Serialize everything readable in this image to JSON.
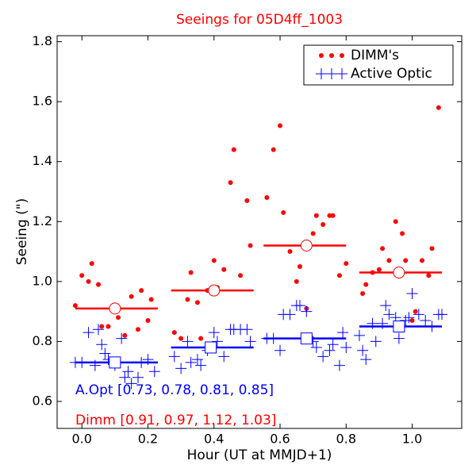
{
  "chart_data": {
    "type": "scatter",
    "title": "Seeings for 05D4ff_1003",
    "title_color": "#ff0000",
    "xlabel": "Hour (UT at MMJD+1)",
    "ylabel": "Seeing (\")",
    "xlim": [
      -0.075,
      1.15
    ],
    "ylim": [
      0.51,
      1.82
    ],
    "xticks": [
      {
        "value": 0,
        "label": "0.0"
      },
      0.2,
      0.4,
      0.6,
      0.8,
      {
        "value": 1,
        "label": "1.0"
      }
    ],
    "yticks": [
      0.6,
      0.8,
      {
        "value": 1,
        "label": "1.0"
      },
      1.2,
      1.4,
      1.6,
      1.8
    ],
    "legend": "upper right",
    "series": [
      {
        "name": "DIMM's",
        "color": "#ff0000",
        "marker": "dot",
        "x": [
          -0.02,
          0.0,
          0.02,
          0.03,
          0.05,
          0.06,
          0.08,
          0.11,
          0.13,
          0.15,
          0.17,
          0.18,
          0.2,
          0.21,
          0.28,
          0.3,
          0.32,
          0.33,
          0.35,
          0.36,
          0.38,
          0.4,
          0.41,
          0.43,
          0.45,
          0.46,
          0.48,
          0.5,
          0.51,
          0.56,
          0.58,
          0.6,
          0.61,
          0.63,
          0.65,
          0.66,
          0.68,
          0.7,
          0.71,
          0.73,
          0.75,
          0.76,
          0.78,
          0.8,
          0.85,
          0.86,
          0.88,
          0.9,
          0.91,
          0.93,
          0.95,
          0.97,
          0.98,
          1.0,
          1.01,
          1.03,
          1.05,
          1.06,
          1.08
        ],
        "values": [
          0.92,
          1.02,
          1.0,
          1.06,
          0.99,
          0.85,
          0.85,
          0.88,
          0.82,
          0.95,
          0.84,
          0.97,
          0.87,
          0.94,
          0.83,
          0.81,
          0.94,
          1.03,
          0.93,
          0.81,
          0.97,
          1.07,
          0.98,
          1.04,
          1.33,
          1.44,
          1.02,
          1.27,
          1.12,
          1.28,
          1.44,
          1.52,
          1.23,
          1.1,
          1.0,
          1.05,
          0.91,
          1.16,
          1.22,
          1.19,
          1.22,
          1.22,
          1.02,
          1.06,
          0.96,
          0.99,
          1.03,
          1.04,
          1.11,
          1.07,
          1.2,
          1.16,
          1.07,
          0.87,
          0.9,
          1.07,
          1.02,
          1.11,
          1.58
        ]
      },
      {
        "name": "Active Optic",
        "color": "#0000ff",
        "marker": "plus",
        "x": [
          -0.02,
          0.0,
          0.02,
          0.04,
          0.05,
          0.06,
          0.07,
          0.08,
          0.1,
          0.12,
          0.13,
          0.14,
          0.15,
          0.17,
          0.18,
          0.2,
          0.22,
          0.28,
          0.3,
          0.32,
          0.33,
          0.35,
          0.36,
          0.38,
          0.4,
          0.41,
          0.43,
          0.45,
          0.46,
          0.48,
          0.5,
          0.51,
          0.56,
          0.58,
          0.6,
          0.61,
          0.63,
          0.65,
          0.66,
          0.68,
          0.7,
          0.71,
          0.73,
          0.75,
          0.76,
          0.78,
          0.79,
          0.8,
          0.84,
          0.85,
          0.86,
          0.88,
          0.89,
          0.91,
          0.92,
          0.93,
          0.95,
          0.96,
          0.98,
          0.99,
          1.0,
          1.02,
          1.04,
          1.06,
          1.08,
          1.09
        ],
        "values": [
          0.73,
          0.73,
          0.83,
          0.72,
          0.84,
          0.79,
          0.76,
          0.74,
          0.72,
          0.81,
          0.68,
          0.7,
          0.66,
          0.68,
          0.73,
          0.74,
          0.7,
          0.75,
          0.71,
          0.8,
          0.73,
          0.74,
          0.72,
          0.77,
          0.83,
          0.8,
          0.75,
          0.84,
          0.84,
          0.84,
          0.84,
          0.8,
          0.81,
          0.81,
          0.77,
          0.89,
          0.89,
          0.92,
          0.92,
          0.9,
          0.8,
          0.78,
          0.75,
          0.77,
          0.79,
          0.72,
          0.83,
          0.78,
          0.82,
          0.77,
          0.74,
          0.86,
          0.8,
          0.86,
          0.92,
          0.89,
          0.88,
          0.81,
          0.87,
          0.88,
          0.96,
          0.89,
          0.87,
          0.85,
          0.89,
          0.89
        ]
      }
    ],
    "summary": [
      {
        "color": "#ff0000",
        "marker": "circle",
        "x_start": [
          -0.02,
          0.27,
          0.55,
          0.84
        ],
        "x_end": [
          0.23,
          0.52,
          0.8,
          1.09
        ],
        "x": [
          0.1,
          0.4,
          0.68,
          0.96
        ],
        "values": [
          0.91,
          0.97,
          1.12,
          1.03
        ]
      },
      {
        "color": "#0000ff",
        "marker": "square",
        "x_start": [
          -0.02,
          0.27,
          0.55,
          0.84
        ],
        "x_end": [
          0.23,
          0.52,
          0.8,
          1.09
        ],
        "x": [
          0.1,
          0.39,
          0.68,
          0.96
        ],
        "values": [
          0.73,
          0.78,
          0.81,
          0.85
        ]
      }
    ],
    "annotations": [
      {
        "text": "A.Opt [0.73, 0.78, 0.81, 0.85]",
        "color": "#0000ff"
      },
      {
        "text": "Dimm [0.91, 0.97, 1.12, 1.03]",
        "color": "#ff0000"
      }
    ]
  }
}
